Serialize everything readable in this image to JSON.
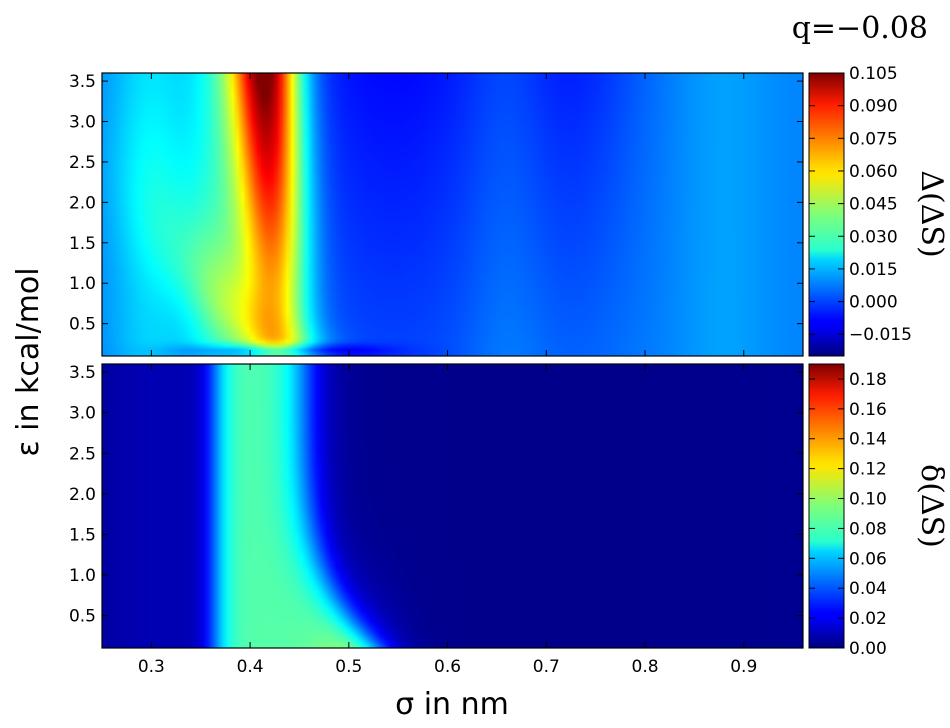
{
  "annotation": "q=−0.08",
  "xlabel": "σ in nm",
  "ylabel": "ε in kcal/mol",
  "chart_data": [
    {
      "type": "heatmap",
      "panel": "top",
      "colormap": "jet",
      "x_range": [
        0.25,
        0.96
      ],
      "y_range": [
        0.1,
        3.6
      ],
      "x_ticks": [
        0.3,
        0.4,
        0.5,
        0.6,
        0.7,
        0.8,
        0.9
      ],
      "x_tick_labels": [
        "0.3",
        "0.4",
        "0.5",
        "0.6",
        "0.7",
        "0.8",
        "0.9"
      ],
      "y_ticks": [
        0.5,
        1.0,
        1.5,
        2.0,
        2.5,
        3.0,
        3.5
      ],
      "y_tick_labels": [
        "0.5",
        "1.0",
        "1.5",
        "2.0",
        "2.5",
        "3.0",
        "3.5"
      ],
      "colorbar": {
        "label": "Δ(ΔS)",
        "range": [
          -0.025,
          0.105
        ],
        "ticks": [
          -0.015,
          0.0,
          0.015,
          0.03,
          0.045,
          0.06,
          0.075,
          0.09,
          0.105
        ],
        "tick_labels": [
          "−0.015",
          "0.000",
          "0.015",
          "0.030",
          "0.045",
          "0.060",
          "0.075",
          "0.090",
          "0.105"
        ]
      },
      "grid": false,
      "features": "Vertical high-value ridge peaking near σ≈0.42 at high ε (≈0.105), moderate band σ≈0.36–0.46, low values elsewhere with faint bands near σ≈0.65 and 0.87."
    },
    {
      "type": "heatmap",
      "panel": "bottom",
      "colormap": "jet",
      "x_range": [
        0.25,
        0.96
      ],
      "y_range": [
        0.1,
        3.6
      ],
      "x_ticks": [
        0.3,
        0.4,
        0.5,
        0.6,
        0.7,
        0.8,
        0.9
      ],
      "x_tick_labels": [
        "0.3",
        "0.4",
        "0.5",
        "0.6",
        "0.7",
        "0.8",
        "0.9"
      ],
      "y_ticks": [
        0.5,
        1.0,
        1.5,
        2.0,
        2.5,
        3.0,
        3.5
      ],
      "y_tick_labels": [
        "0.5",
        "1.0",
        "1.5",
        "2.0",
        "2.5",
        "3.0",
        "3.5"
      ],
      "colorbar": {
        "label": "δ(ΔS)",
        "range": [
          0.0,
          0.19
        ],
        "ticks": [
          0.0,
          0.02,
          0.04,
          0.06,
          0.08,
          0.1,
          0.12,
          0.14,
          0.16,
          0.18
        ],
        "tick_labels": [
          "0.00",
          "0.02",
          "0.04",
          "0.06",
          "0.08",
          "0.10",
          "0.12",
          "0.14",
          "0.16",
          "0.18"
        ]
      },
      "grid": false,
      "features": "Vertical band σ≈0.37–0.45 with values ≈0.08–0.09, tailing toward larger σ at low ε; near zero elsewhere."
    }
  ]
}
